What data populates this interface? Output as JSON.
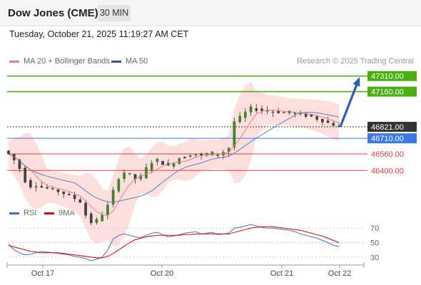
{
  "header": {
    "title": "Dow Jones (CME)",
    "timeframe": "30 MIN"
  },
  "datetime": "Tuesday, October 21, 2025 11:19:27 AM CET",
  "legend": {
    "items": [
      {
        "label": "MA 20 + Bollinger Bands",
        "color": "#f08080"
      },
      {
        "label": "MA 50",
        "color": "#2d5597"
      }
    ],
    "copyright": "Research © 2025 Trading Central"
  },
  "rsi_legend": {
    "items": [
      {
        "label": "RSI",
        "color": "#4472c4"
      },
      {
        "label": "9MA",
        "color": "#e00000"
      }
    ]
  },
  "chart_data": [
    {
      "type": "candlestick",
      "x_ticks": [
        "Oct 17",
        "Oct 20",
        "Oct 21",
        "Oct 22"
      ],
      "ylim": [
        46100,
        47370
      ],
      "levels": [
        {
          "value": 47310,
          "label": "47310.00",
          "kind": "resistance",
          "color": "#4caf10"
        },
        {
          "value": 47160,
          "label": "47160.00",
          "kind": "resistance",
          "color": "#4caf10"
        },
        {
          "value": 46821,
          "label": "46821.00",
          "kind": "last",
          "color": "#333333"
        },
        {
          "value": 46710,
          "label": "46710.00",
          "kind": "pivot",
          "color": "#3b78e7"
        },
        {
          "value": 46560,
          "label": "46560.00",
          "kind": "support",
          "color": "#e84040"
        },
        {
          "value": 46400,
          "label": "46400.00",
          "kind": "support",
          "color": "#e84040"
        }
      ],
      "path": [
        46560,
        46500,
        46420,
        46300,
        46250,
        46260,
        46240,
        46230,
        46215,
        46200,
        46180,
        46160,
        46130,
        46100,
        45970,
        45900,
        45920,
        45980,
        46060,
        46200,
        46330,
        46380,
        46360,
        46320,
        46340,
        46420,
        46480,
        46500,
        46470,
        46440,
        46480,
        46520,
        46530,
        46555,
        46560,
        46540,
        46560,
        46570,
        46550,
        46580,
        46620,
        46870,
        46910,
        46960,
        47000,
        46990,
        46980,
        46975,
        46970,
        46965,
        46960,
        46955,
        46950,
        46940,
        46930,
        46920,
        46900,
        46880,
        46860,
        46840,
        46821
      ],
      "projection": {
        "from": 46821,
        "to": 47310
      }
    },
    {
      "type": "line",
      "name": "RSI panel",
      "ylim": [
        23,
        77
      ],
      "y_ticks": [
        70,
        50,
        30
      ],
      "rsi": [
        48,
        40,
        36,
        33,
        34,
        36,
        38,
        37,
        36,
        35,
        34,
        33,
        31,
        30,
        28,
        25,
        27,
        30,
        40,
        55,
        60,
        62,
        60,
        58,
        57,
        60,
        63,
        64,
        61,
        58,
        59,
        61,
        63,
        64,
        65,
        62,
        63,
        64,
        61,
        62,
        63,
        70,
        71,
        73,
        75,
        73,
        71,
        70,
        70,
        69,
        68,
        67,
        65,
        62,
        60,
        58,
        56,
        53,
        50,
        46,
        45
      ],
      "ma9": [
        46,
        44,
        42,
        40,
        38,
        37,
        36,
        36,
        36,
        36,
        35,
        34,
        33,
        32,
        31,
        30,
        29,
        29,
        31,
        35,
        40,
        45,
        50,
        54,
        56,
        58,
        59,
        60,
        60,
        60,
        60,
        60,
        61,
        61,
        62,
        62,
        62,
        62,
        62,
        62,
        62,
        64,
        66,
        68,
        70,
        71,
        72,
        72,
        72,
        71,
        70,
        69,
        68,
        67,
        65,
        63,
        61,
        59,
        56,
        53,
        50
      ]
    }
  ]
}
